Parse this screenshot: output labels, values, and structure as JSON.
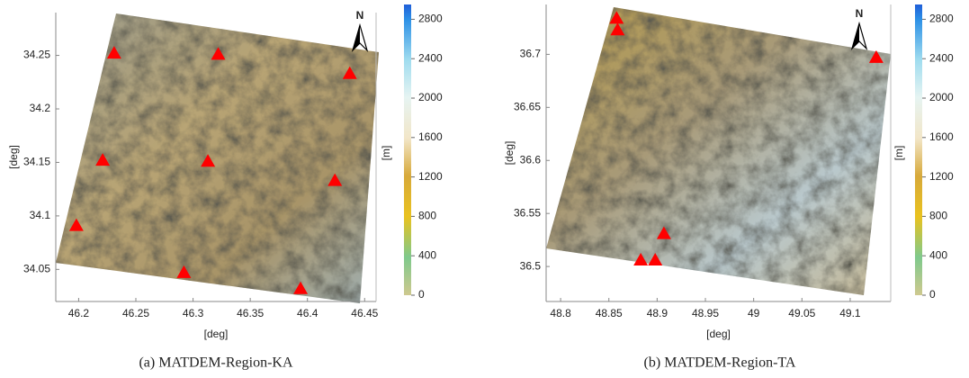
{
  "chart_data": [
    {
      "type": "scatter",
      "caption": "(a) MATDEM-Region-KA",
      "xlabel": "[deg]",
      "ylabel": "[deg]",
      "north": "N",
      "x": [
        46.231,
        46.322,
        46.437,
        46.221,
        46.313,
        46.424,
        46.198,
        46.292,
        46.394
      ],
      "values": [
        34.252,
        34.251,
        34.233,
        34.152,
        34.151,
        34.133,
        34.091,
        34.047,
        34.032
      ],
      "color": "#ff0000",
      "xlim": [
        46.18,
        46.46
      ],
      "ylim": [
        34.02,
        34.29
      ],
      "xticks": [
        46.2,
        46.25,
        46.3,
        46.35,
        46.4,
        46.45
      ],
      "yticks": [
        34.05,
        34.1,
        34.15,
        34.2,
        34.25
      ],
      "colorbar": {
        "label": "[m]",
        "lim": [
          0,
          2950
        ],
        "ticks": [
          0,
          400,
          800,
          1200,
          1600,
          2000,
          2400,
          2800
        ]
      }
    },
    {
      "type": "scatter",
      "caption": "(b) MATDEM-Region-TA",
      "xlabel": "[deg]",
      "ylabel": "[deg]",
      "north": "N",
      "x": [
        48.858,
        48.859,
        49.127,
        48.907,
        48.883,
        48.898
      ],
      "values": [
        36.734,
        36.723,
        36.697,
        36.531,
        36.506,
        36.506
      ],
      "color": "#ff0000",
      "xlim": [
        48.785,
        49.142
      ],
      "ylim": [
        36.467,
        36.747
      ],
      "xticks": [
        48.8,
        48.85,
        48.9,
        48.95,
        49,
        49.05,
        49.1
      ],
      "yticks": [
        36.5,
        36.55,
        36.6,
        36.65,
        36.7
      ],
      "colorbar": {
        "label": "[m]",
        "lim": [
          0,
          2950
        ],
        "ticks": [
          0,
          400,
          800,
          1200,
          1600,
          2000,
          2400,
          2800
        ]
      }
    }
  ]
}
